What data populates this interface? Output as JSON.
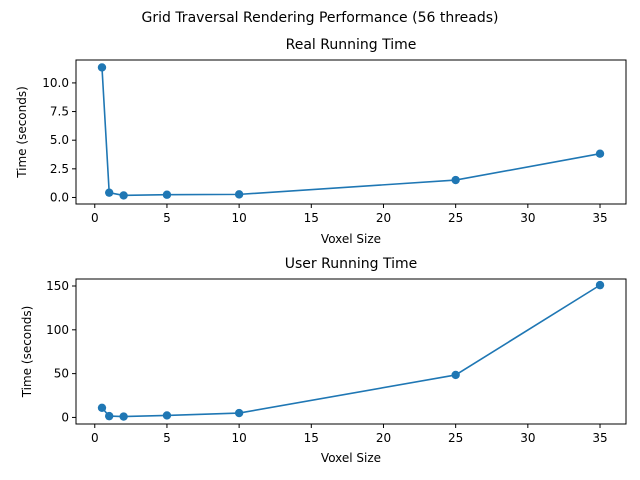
{
  "suptitle": "Grid Traversal Rendering Performance (56 threads)",
  "chart_data": [
    {
      "type": "line",
      "title": "Real Running Time",
      "xlabel": "Voxel Size",
      "ylabel": "Time (seconds)",
      "xlim": [
        -1.3,
        36.8
      ],
      "ylim": [
        -0.57,
        12.0
      ],
      "xticks": [
        0,
        5,
        10,
        15,
        20,
        25,
        30,
        35
      ],
      "xtick_labels": [
        "0",
        "5",
        "10",
        "15",
        "20",
        "25",
        "30",
        "35"
      ],
      "yticks": [
        0,
        2.5,
        5,
        7.5,
        10
      ],
      "ytick_labels": [
        "0.0",
        "2.5",
        "5.0",
        "7.5",
        "10.0"
      ],
      "color": "#1f77b4",
      "series": [
        {
          "x": [
            0.5,
            1,
            2,
            5,
            10,
            25,
            35
          ],
          "y": [
            11.35,
            0.42,
            0.18,
            0.24,
            0.27,
            1.52,
            3.82
          ]
        }
      ]
    },
    {
      "type": "line",
      "title": "User Running Time",
      "xlabel": "Voxel Size",
      "ylabel": "Time (seconds)",
      "xlim": [
        -1.3,
        36.8
      ],
      "ylim": [
        -7.5,
        158.0
      ],
      "xticks": [
        0,
        5,
        10,
        15,
        20,
        25,
        30,
        35
      ],
      "xtick_labels": [
        "0",
        "5",
        "10",
        "15",
        "20",
        "25",
        "30",
        "35"
      ],
      "yticks": [
        0,
        50,
        100,
        150
      ],
      "ytick_labels": [
        "0",
        "50",
        "100",
        "150"
      ],
      "color": "#1f77b4",
      "series": [
        {
          "x": [
            0.5,
            1,
            2,
            5,
            10,
            25,
            35
          ],
          "y": [
            11,
            1.5,
            1.0,
            2.3,
            5,
            48.5,
            151
          ]
        }
      ]
    }
  ]
}
